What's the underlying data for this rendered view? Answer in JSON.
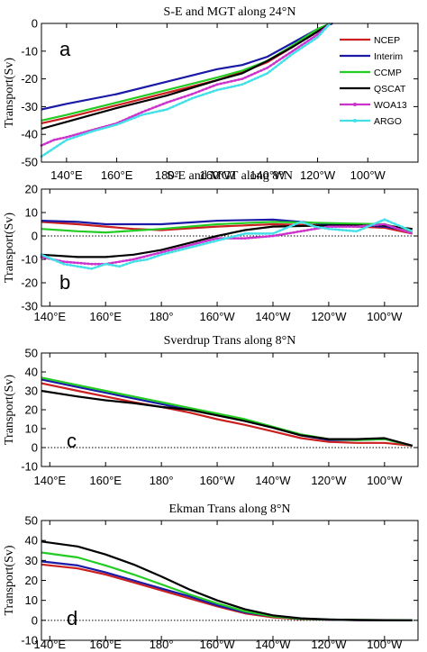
{
  "chart_data": [
    {
      "type": "line",
      "panel_label": "a",
      "title": "S-E and MGT along 24°N",
      "ylabel": "Transport(Sv)",
      "xlim": [
        130,
        280
      ],
      "ylim": [
        -50,
        0
      ],
      "yticks": [
        0,
        -10,
        -20,
        -30,
        -40,
        -50
      ],
      "xticks": [
        {
          "v": 140,
          "l": "140°E"
        },
        {
          "v": 160,
          "l": "160°E"
        },
        {
          "v": 180,
          "l": "180°"
        },
        {
          "v": 200,
          "l": "160°W"
        },
        {
          "v": 220,
          "l": "140°W"
        },
        {
          "v": 240,
          "l": "120°W"
        },
        {
          "v": 260,
          "l": "100°W"
        }
      ],
      "zero_line": false,
      "legend": {
        "placement": "top-right"
      },
      "series": [
        {
          "name": "NCEP",
          "color": "#cc1f1f",
          "marker": "none",
          "x": [
            130,
            140,
            160,
            180,
            200,
            210,
            220,
            230,
            240,
            245
          ],
          "y": [
            -36,
            -34,
            -29.5,
            -25,
            -20.5,
            -17.5,
            -14,
            -8.5,
            -2.5,
            0
          ]
        },
        {
          "name": "Interim",
          "color": "#1a1aa6",
          "marker": "none",
          "x": [
            130,
            140,
            160,
            180,
            200,
            210,
            220,
            230,
            240,
            246
          ],
          "y": [
            -31,
            -29,
            -25.5,
            -21,
            -16.5,
            -15,
            -12,
            -7,
            -2,
            0
          ]
        },
        {
          "name": "CCMP",
          "color": "#22cc22",
          "marker": "none",
          "x": [
            130,
            140,
            160,
            180,
            200,
            210,
            220,
            230,
            240,
            245
          ],
          "y": [
            -35,
            -33,
            -28.5,
            -24,
            -19.5,
            -17,
            -13.5,
            -8,
            -2,
            0
          ]
        },
        {
          "name": "QSCAT",
          "color": "#000000",
          "marker": "none",
          "x": [
            130,
            140,
            160,
            180,
            200,
            210,
            220,
            230,
            240,
            245
          ],
          "y": [
            -38,
            -35.5,
            -30.5,
            -26,
            -20.5,
            -18,
            -13.5,
            -8.5,
            -3,
            0
          ]
        },
        {
          "name": "WOA13",
          "color": "#cc33cc",
          "marker": "dot",
          "x": [
            130,
            135,
            140,
            150,
            160,
            170,
            180,
            190,
            200,
            210,
            220,
            230,
            240,
            245
          ],
          "y": [
            -44,
            -42,
            -41,
            -38.5,
            -36,
            -32,
            -28.5,
            -25.5,
            -22,
            -20,
            -16,
            -10,
            -4,
            0
          ]
        },
        {
          "name": "ARGO",
          "color": "#44e0e8",
          "marker": "dot",
          "x": [
            130,
            135,
            140,
            150,
            160,
            170,
            180,
            190,
            200,
            210,
            220,
            230,
            240,
            245
          ],
          "y": [
            -48,
            -45,
            -42,
            -39,
            -36.5,
            -33,
            -31,
            -27,
            -24,
            -22,
            -18,
            -11,
            -5,
            0
          ]
        }
      ]
    },
    {
      "type": "line",
      "panel_label": "b",
      "title": "S-E and MGT along 8°N",
      "ylabel": "Transport(Sv)",
      "xlim": [
        137,
        272
      ],
      "ylim": [
        -30,
        20
      ],
      "yticks": [
        20,
        10,
        0,
        -10,
        -20,
        -30
      ],
      "xticks": [
        {
          "v": 140,
          "l": "140°E"
        },
        {
          "v": 160,
          "l": "160°E"
        },
        {
          "v": 180,
          "l": "180°"
        },
        {
          "v": 200,
          "l": "160°W"
        },
        {
          "v": 220,
          "l": "140°W"
        },
        {
          "v": 240,
          "l": "120°W"
        },
        {
          "v": 260,
          "l": "100°W"
        }
      ],
      "zero_line": true,
      "series": [
        {
          "name": "NCEP",
          "color": "#cc1f1f",
          "marker": "none",
          "x": [
            137,
            150,
            160,
            170,
            180,
            200,
            220,
            240,
            260,
            270
          ],
          "y": [
            6,
            5,
            4,
            3,
            2.5,
            4,
            5,
            4.5,
            3.5,
            1
          ]
        },
        {
          "name": "Interim",
          "color": "#1a1aa6",
          "marker": "none",
          "x": [
            137,
            150,
            160,
            180,
            200,
            220,
            240,
            260,
            270
          ],
          "y": [
            6.5,
            6,
            5,
            5,
            6.5,
            7,
            5,
            4,
            2
          ]
        },
        {
          "name": "CCMP",
          "color": "#22cc22",
          "marker": "none",
          "x": [
            137,
            150,
            160,
            180,
            200,
            220,
            240,
            260,
            270
          ],
          "y": [
            3,
            2,
            1.5,
            3,
            5,
            6,
            5.5,
            5,
            2
          ]
        },
        {
          "name": "QSCAT",
          "color": "#000000",
          "marker": "none",
          "x": [
            137,
            150,
            160,
            170,
            180,
            190,
            200,
            210,
            220,
            240,
            260,
            270
          ],
          "y": [
            -8,
            -9,
            -9,
            -8,
            -6,
            -3,
            0,
            2.5,
            4,
            4.5,
            4.5,
            3
          ]
        },
        {
          "name": "WOA13",
          "color": "#cc33cc",
          "marker": "dot",
          "x": [
            137,
            145,
            155,
            160,
            170,
            180,
            190,
            200,
            210,
            220,
            230,
            240,
            250,
            260,
            270
          ],
          "y": [
            -9,
            -11,
            -12,
            -12,
            -10,
            -7,
            -4,
            -1,
            -1,
            0,
            2,
            4,
            4,
            5,
            1
          ]
        },
        {
          "name": "ARGO",
          "color": "#44e0e8",
          "marker": "dot",
          "x": [
            137,
            145,
            150,
            155,
            160,
            165,
            170,
            175,
            180,
            190,
            200,
            210,
            220,
            230,
            235,
            240,
            250,
            260,
            270
          ],
          "y": [
            -8,
            -12,
            -13,
            -14,
            -12,
            -13,
            -11,
            -10,
            -8,
            -5,
            -2,
            1,
            1,
            6,
            4,
            3,
            2,
            7,
            2
          ]
        }
      ]
    },
    {
      "type": "line",
      "panel_label": "c",
      "title": "Sverdrup Trans along 8°N",
      "ylabel": "Transport(Sv)",
      "xlim": [
        137,
        272
      ],
      "ylim": [
        -10,
        50
      ],
      "yticks": [
        50,
        40,
        30,
        20,
        10,
        0,
        -10
      ],
      "xticks": [
        {
          "v": 140,
          "l": "140°E"
        },
        {
          "v": 160,
          "l": "160°E"
        },
        {
          "v": 180,
          "l": "180°"
        },
        {
          "v": 200,
          "l": "160°W"
        },
        {
          "v": 220,
          "l": "140°W"
        },
        {
          "v": 240,
          "l": "120°W"
        },
        {
          "v": 260,
          "l": "100°W"
        }
      ],
      "zero_line": true,
      "series": [
        {
          "name": "NCEP",
          "color": "#cc1f1f",
          "marker": "none",
          "x": [
            137,
            150,
            160,
            170,
            180,
            190,
            200,
            210,
            220,
            230,
            240,
            250,
            260,
            270
          ],
          "y": [
            34,
            30,
            27,
            24,
            21.5,
            18.5,
            15,
            12,
            8.5,
            5,
            3,
            2.5,
            2.5,
            1
          ]
        },
        {
          "name": "Interim",
          "color": "#1a1aa6",
          "marker": "none",
          "x": [
            137,
            150,
            160,
            170,
            180,
            190,
            200,
            210,
            220,
            230,
            240,
            250,
            260,
            270
          ],
          "y": [
            36,
            32,
            29,
            26,
            23,
            20,
            17.5,
            14,
            10.5,
            6.5,
            4,
            4,
            4.5,
            1
          ]
        },
        {
          "name": "CCMP",
          "color": "#22cc22",
          "marker": "none",
          "x": [
            137,
            150,
            160,
            170,
            180,
            190,
            200,
            210,
            220,
            230,
            240,
            250,
            260,
            270
          ],
          "y": [
            37,
            33,
            30,
            27,
            24,
            21,
            18,
            15,
            11,
            7,
            4.5,
            4,
            4.5,
            1
          ]
        },
        {
          "name": "QSCAT",
          "color": "#000000",
          "marker": "none",
          "x": [
            137,
            150,
            160,
            170,
            180,
            190,
            200,
            210,
            220,
            230,
            240,
            250,
            260,
            270
          ],
          "y": [
            30,
            27,
            25,
            23.5,
            21.5,
            20,
            17,
            14,
            10.5,
            6.5,
            4.5,
            4.5,
            5,
            1
          ]
        }
      ]
    },
    {
      "type": "line",
      "panel_label": "d",
      "title": "Ekman Trans along 8°N",
      "ylabel": "Transport(Sv)",
      "xlim": [
        137,
        272
      ],
      "ylim": [
        -10,
        50
      ],
      "yticks": [
        50,
        40,
        30,
        20,
        10,
        0,
        -10
      ],
      "xticks": [
        {
          "v": 140,
          "l": "140°E"
        },
        {
          "v": 160,
          "l": "160°E"
        },
        {
          "v": 180,
          "l": "180°"
        },
        {
          "v": 200,
          "l": "160°W"
        },
        {
          "v": 220,
          "l": "140°W"
        },
        {
          "v": 240,
          "l": "120°W"
        },
        {
          "v": 260,
          "l": "100°W"
        }
      ],
      "zero_line": true,
      "series": [
        {
          "name": "NCEP",
          "color": "#cc1f1f",
          "marker": "none",
          "x": [
            137,
            150,
            160,
            170,
            180,
            190,
            200,
            210,
            220,
            230,
            240,
            250,
            260,
            270
          ],
          "y": [
            28,
            26,
            23,
            19,
            15,
            11,
            7,
            3.5,
            1.5,
            0.5,
            0.3,
            0.1,
            0,
            0
          ]
        },
        {
          "name": "Interim",
          "color": "#1a1aa6",
          "marker": "none",
          "x": [
            137,
            150,
            160,
            170,
            180,
            190,
            200,
            210,
            220,
            230,
            240,
            250,
            260,
            270
          ],
          "y": [
            29.5,
            27.5,
            24,
            20,
            16,
            12,
            7.5,
            4,
            2,
            0.7,
            0.3,
            0.1,
            0,
            0
          ]
        },
        {
          "name": "CCMP",
          "color": "#22cc22",
          "marker": "none",
          "x": [
            137,
            150,
            160,
            170,
            180,
            190,
            200,
            210,
            220,
            230,
            240,
            250,
            260,
            270
          ],
          "y": [
            34,
            31.5,
            27.5,
            23,
            18,
            13,
            8.5,
            4.5,
            2,
            0.8,
            0.4,
            0.2,
            0.1,
            0
          ]
        },
        {
          "name": "QSCAT",
          "color": "#000000",
          "marker": "none",
          "x": [
            137,
            150,
            160,
            170,
            180,
            190,
            200,
            210,
            220,
            230,
            240,
            250,
            260,
            270
          ],
          "y": [
            39.5,
            37,
            33,
            28,
            22,
            15.5,
            10,
            5.5,
            2.5,
            1,
            0.4,
            0.2,
            0.1,
            0
          ]
        }
      ]
    }
  ]
}
